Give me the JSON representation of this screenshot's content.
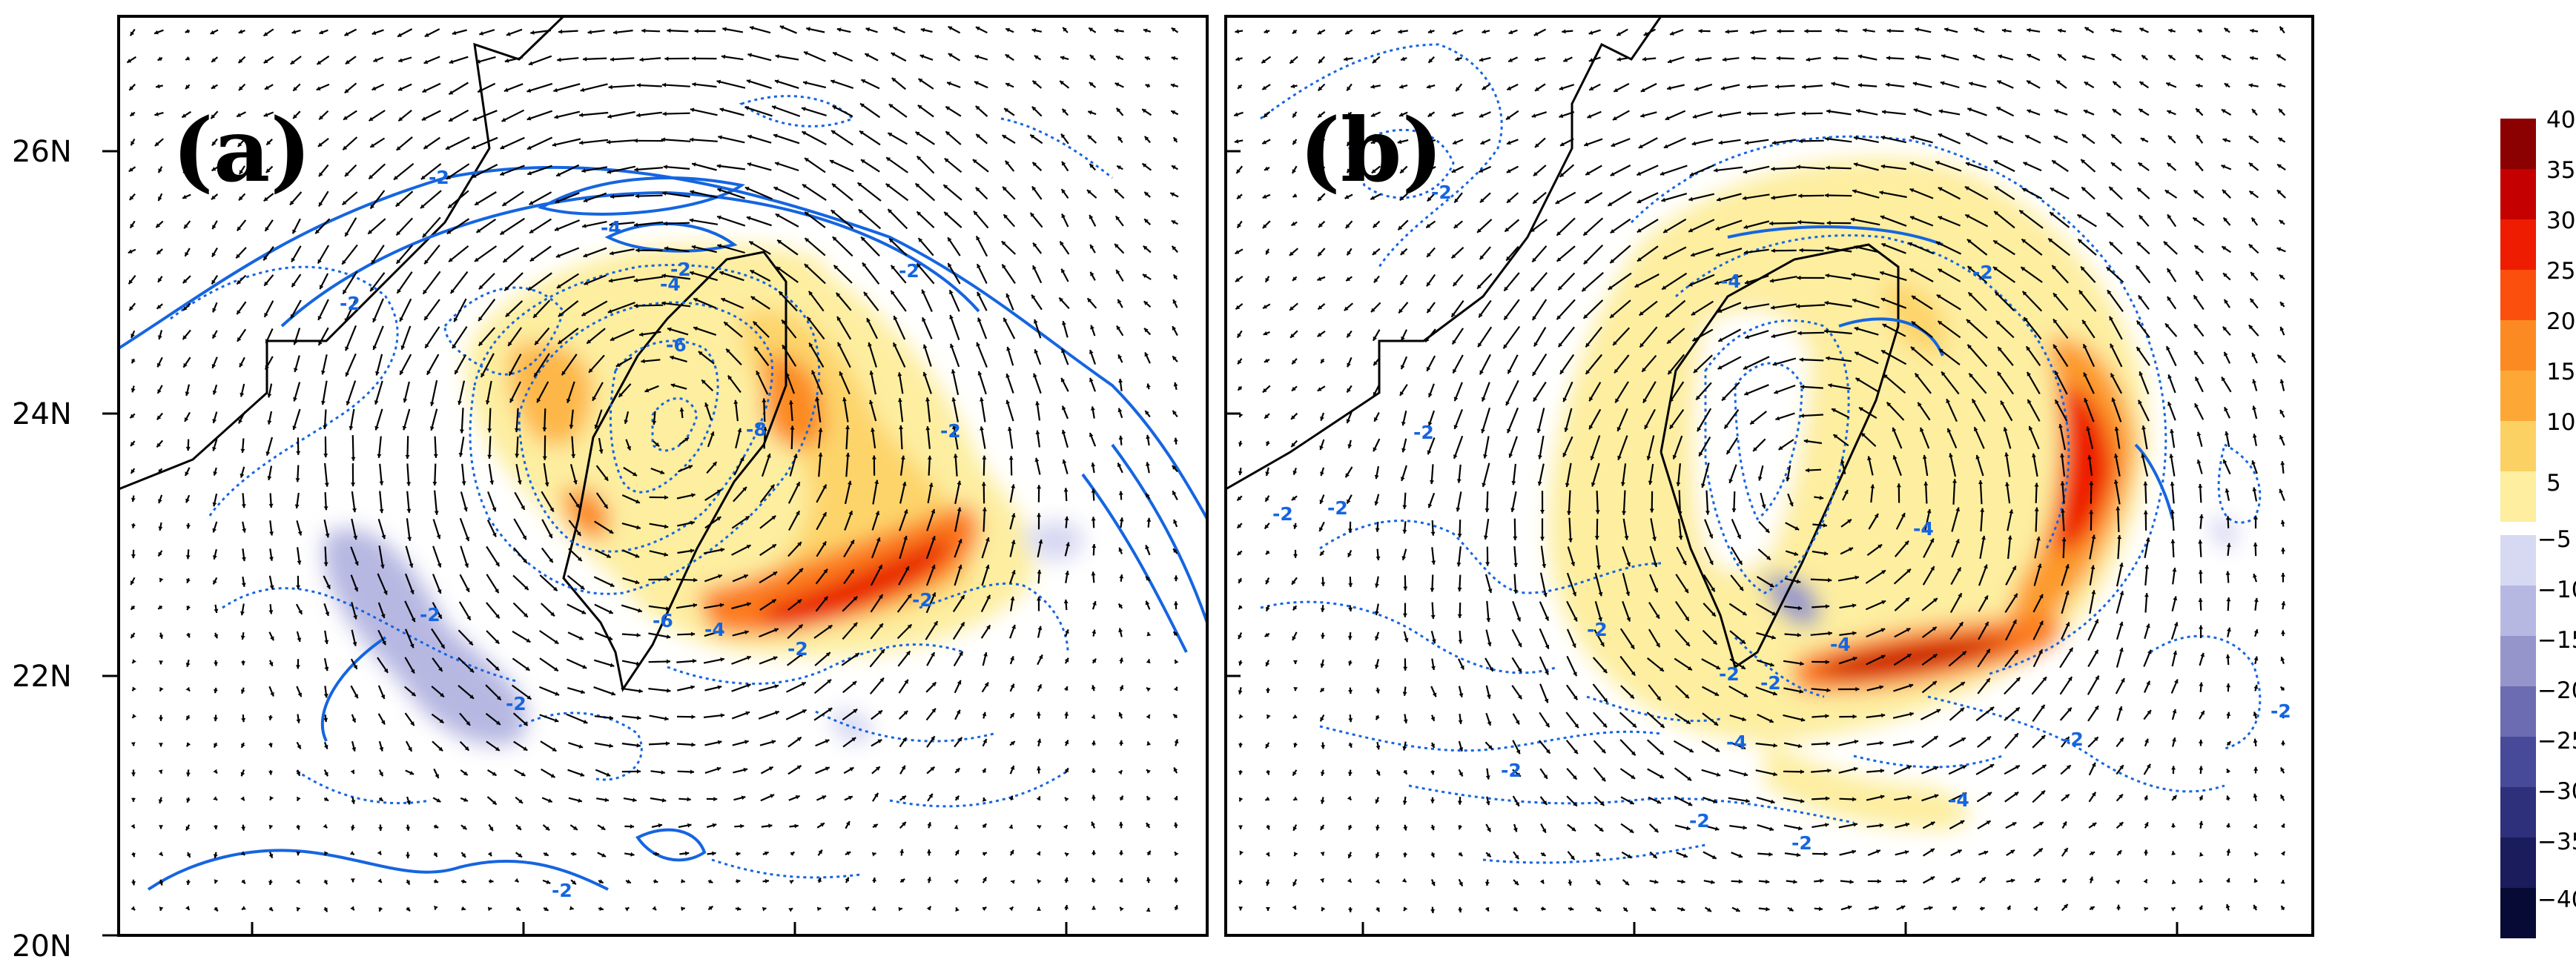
{
  "figure": {
    "panels": [
      {
        "id": "a",
        "label": "(a)"
      },
      {
        "id": "b",
        "label": "(b)"
      }
    ]
  },
  "chart_data": [
    {
      "type": "heatmap",
      "panel": "(a)",
      "description_fields": {
        "fill_field_range": [
          -40,
          40
        ],
        "contours": "dashed/solid blue isolines",
        "vectors": "wind vectors"
      },
      "ytick_labels": [
        "26N",
        "24N",
        "22N",
        "20N"
      ],
      "ytick_values": [
        26,
        24,
        22,
        20
      ],
      "ylim": [
        20,
        27
      ],
      "contour_labels": [
        "-2",
        "-4",
        "-2",
        "-2",
        "-4",
        "-6",
        "-2",
        "-8",
        "-2",
        "-6",
        "-4",
        "-2",
        "-2",
        "-2",
        "-2",
        "-2"
      ],
      "grid": false
    },
    {
      "type": "heatmap",
      "panel": "(b)",
      "ylim": [
        20,
        27
      ],
      "contour_labels": [
        "-2",
        "-4",
        "-2",
        "-2",
        "-2",
        "-4",
        "-2",
        "-4",
        "-2",
        "-2",
        "-2",
        "-2",
        "-2",
        "-4",
        "-4",
        "-2",
        "-2",
        "-2"
      ],
      "grid": false
    }
  ],
  "colorbar": {
    "ticks": [
      "40",
      "35",
      "30",
      "25",
      "20",
      "15",
      "10",
      "5",
      "−5",
      "−10",
      "−15",
      "−20",
      "−25",
      "−30",
      "−35",
      "−40"
    ],
    "positive_colors": [
      "#8b0000",
      "#c40000",
      "#ee1c00",
      "#fb4f0d",
      "#fc8a23",
      "#fda836",
      "#fcd164",
      "#fdeea0"
    ],
    "negative_colors": [
      "#d7d8f2",
      "#b7b8e2",
      "#9595cc",
      "#6c6cb2",
      "#474a99",
      "#2f307c",
      "#1a1c5c",
      "#080a36"
    ],
    "contour_color": "#1565e0",
    "vector_color": "#000000"
  }
}
